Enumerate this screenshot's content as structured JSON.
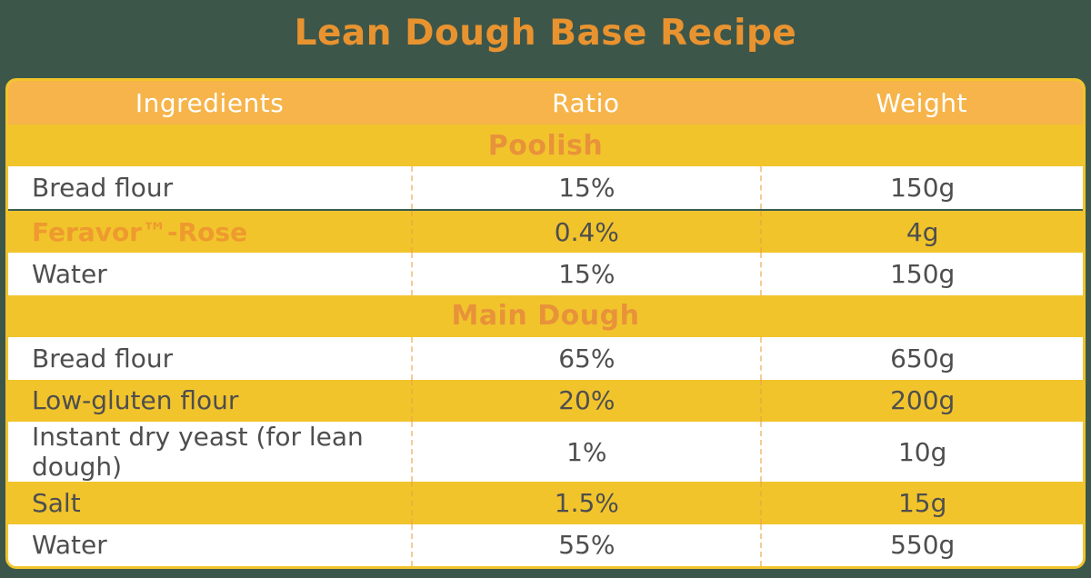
{
  "title": "Lean Dough Base Recipe",
  "table": {
    "headers": [
      "Ingredients",
      "Ratio",
      "Weight"
    ],
    "sections": [
      {
        "label": "Poolish",
        "rows": [
          {
            "name": "Bread flour",
            "ratio": "15%",
            "weight": "150g"
          },
          {
            "name": "Feravor™-Rose",
            "ratio": "0.4%",
            "weight": "4g"
          },
          {
            "name": "Water",
            "ratio": "15%",
            "weight": "150g"
          }
        ]
      },
      {
        "label": "Main Dough",
        "rows": [
          {
            "name": "Bread flour",
            "ratio": "65%",
            "weight": "650g"
          },
          {
            "name": "Low-gluten flour",
            "ratio": "20%",
            "weight": "200g"
          },
          {
            "name": "Instant dry yeast (for lean dough)",
            "ratio": "1%",
            "weight": "10g"
          },
          {
            "name": "Salt",
            "ratio": "1.5%",
            "weight": "15g"
          },
          {
            "name": "Water",
            "ratio": "55%",
            "weight": "550g"
          }
        ]
      }
    ]
  },
  "colors": {
    "background_green": "#3D564A",
    "header_amber": "#F6B44A",
    "row_yellow": "#F1C42C",
    "title_orange": "#E8932F",
    "section_orange": "#E8923A",
    "brand_orange": "#EE9A2E",
    "row_text": "#4E4E4E",
    "header_text": "#FFFFFF",
    "divider_teal": "#3A5D52"
  }
}
